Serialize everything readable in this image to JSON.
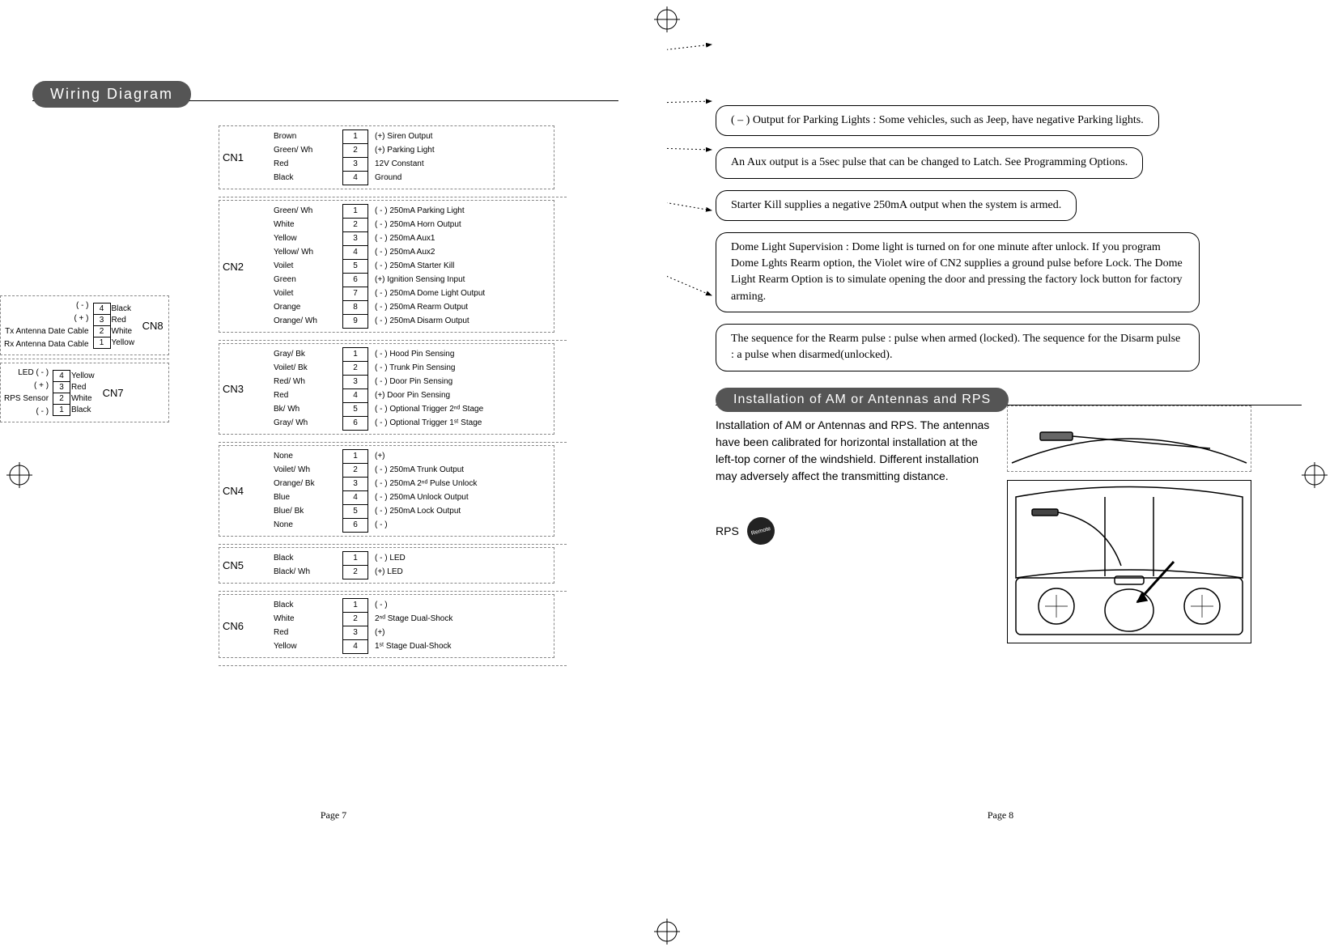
{
  "headers": {
    "wiring": "Wiring Diagram",
    "install": "Installation of AM or Antennas and RPS"
  },
  "leftPage": {
    "cnLeft": {
      "cn8": {
        "label": "CN8",
        "rows": [
          {
            "side": "( - )",
            "num": "4",
            "color": "Black"
          },
          {
            "side": "( + )",
            "num": "3",
            "color": "Red"
          },
          {
            "side": "Tx Antenna Date Cable",
            "num": "2",
            "color": "White"
          },
          {
            "side": "Rx Antenna Data Cable",
            "num": "1",
            "color": "Yellow"
          }
        ]
      },
      "cn7": {
        "label": "CN7",
        "rows": [
          {
            "side": "LED ( - )",
            "num": "4",
            "color": "Yellow"
          },
          {
            "side": "( + )",
            "num": "3",
            "color": "Red"
          },
          {
            "side": "RPS Sensor",
            "num": "2",
            "color": "White"
          },
          {
            "side": "( - )",
            "num": "1",
            "color": "Black"
          }
        ]
      }
    },
    "connectors": [
      {
        "label": "CN1",
        "rows": [
          {
            "color": "Brown",
            "num": "1",
            "desc": "(+) Siren Output"
          },
          {
            "color": "Green/ Wh",
            "num": "2",
            "desc": "(+) Parking Light"
          },
          {
            "color": "Red",
            "num": "3",
            "desc": "12V  Constant"
          },
          {
            "color": "Black",
            "num": "4",
            "desc": "Ground"
          }
        ]
      },
      {
        "label": "CN2",
        "rows": [
          {
            "color": "Green/ Wh",
            "num": "1",
            "desc": "( - ) 250mA Parking Light"
          },
          {
            "color": "White",
            "num": "2",
            "desc": "( - ) 250mA Horn Output"
          },
          {
            "color": "Yellow",
            "num": "3",
            "desc": "( - ) 250mA Aux1"
          },
          {
            "color": "Yellow/ Wh",
            "num": "4",
            "desc": "( - ) 250mA Aux2"
          },
          {
            "color": "Voilet",
            "num": "5",
            "desc": "( - ) 250mA Starter Kill"
          },
          {
            "color": "Green",
            "num": "6",
            "desc": "(+) Ignition Sensing Input"
          },
          {
            "color": "Voilet",
            "num": "7",
            "desc": "( - ) 250mA Dome Light Output"
          },
          {
            "color": "Orange",
            "num": "8",
            "desc": "( - ) 250mA Rearm Output"
          },
          {
            "color": "Orange/ Wh",
            "num": "9",
            "desc": "( - ) 250mA Disarm Output"
          }
        ]
      },
      {
        "label": "CN3",
        "rows": [
          {
            "color": "Gray/ Bk",
            "num": "1",
            "desc": "( - ) Hood Pin Sensing"
          },
          {
            "color": "Voilet/ Bk",
            "num": "2",
            "desc": "( - ) Trunk Pin Sensing"
          },
          {
            "color": "Red/ Wh",
            "num": "3",
            "desc": "( - ) Door Pin Sensing"
          },
          {
            "color": "Red",
            "num": "4",
            "desc": "(+) Door Pin Sensing"
          },
          {
            "color": "Bk/ Wh",
            "num": "5",
            "desc": "( - ) Optional Trigger 2ⁿᵈ Stage"
          },
          {
            "color": "Gray/ Wh",
            "num": "6",
            "desc": "( - ) Optional Trigger 1ˢᵗ Stage"
          }
        ]
      },
      {
        "label": "CN4",
        "rows": [
          {
            "color": "None",
            "num": "1",
            "desc": "(+)"
          },
          {
            "color": "Voilet/ Wh",
            "num": "2",
            "desc": "( - ) 250mA Trunk Output"
          },
          {
            "color": "Orange/ Bk",
            "num": "3",
            "desc": "( - ) 250mA 2ⁿᵈ Pulse Unlock"
          },
          {
            "color": "Blue",
            "num": "4",
            "desc": "( - ) 250mA  Unlock Output"
          },
          {
            "color": "Blue/ Bk",
            "num": "5",
            "desc": "( - ) 250mA  Lock Output"
          },
          {
            "color": "None",
            "num": "6",
            "desc": "( - )"
          }
        ]
      },
      {
        "label": "CN5",
        "rows": [
          {
            "color": "Black",
            "num": "1",
            "desc": "( - ) LED"
          },
          {
            "color": "Black/ Wh",
            "num": "2",
            "desc": "(+) LED"
          }
        ]
      },
      {
        "label": "CN6",
        "rows": [
          {
            "color": "Black",
            "num": "1",
            "desc": "( - )"
          },
          {
            "color": "White",
            "num": "2",
            "desc": "2ⁿᵈ Stage Dual-Shock"
          },
          {
            "color": "Red",
            "num": "3",
            "desc": "(+)"
          },
          {
            "color": "Yellow",
            "num": "4",
            "desc": "1ˢᵗ Stage Dual-Shock"
          }
        ]
      }
    ],
    "pageNum": "Page 7"
  },
  "rightPage": {
    "notes": [
      "( – ) Output for Parking Lights : Some vehicles, such as Jeep, have negative Parking lights.",
      "An Aux output is a 5sec pulse that can be changed to Latch. See Programming Options.",
      "Starter Kill supplies a negative 250mA output when the system is armed.",
      "Dome Light Supervision : Dome light is turned on for one minute after unlock.  If you program Dome Lghts Rearm option, the Violet wire of CN2 supplies a ground pulse before Lock. The Dome Light Rearm Option is to simulate opening the door and pressing the factory lock button for factory arming.",
      "The sequence for the Rearm pulse : pulse when armed (locked). The sequence for the Disarm pulse : a pulse when disarmed(unlocked)."
    ],
    "install": {
      "text": "Installation of AM or Antennas and RPS. The antennas have been calibrated for horizontal installation at the left-top corner of the windshield.  Different installation may adversely affect the transmitting distance.",
      "rpsLabel": "RPS"
    },
    "pageNum": "Page 8"
  },
  "styles": {
    "header_bg": "#555555",
    "header_fg": "#ffffff",
    "body_bg": "#ffffff",
    "border_color": "#000000",
    "dashed_color": "#888888",
    "base_fontsize": 12,
    "note_fontfamily": "Times New Roman"
  }
}
